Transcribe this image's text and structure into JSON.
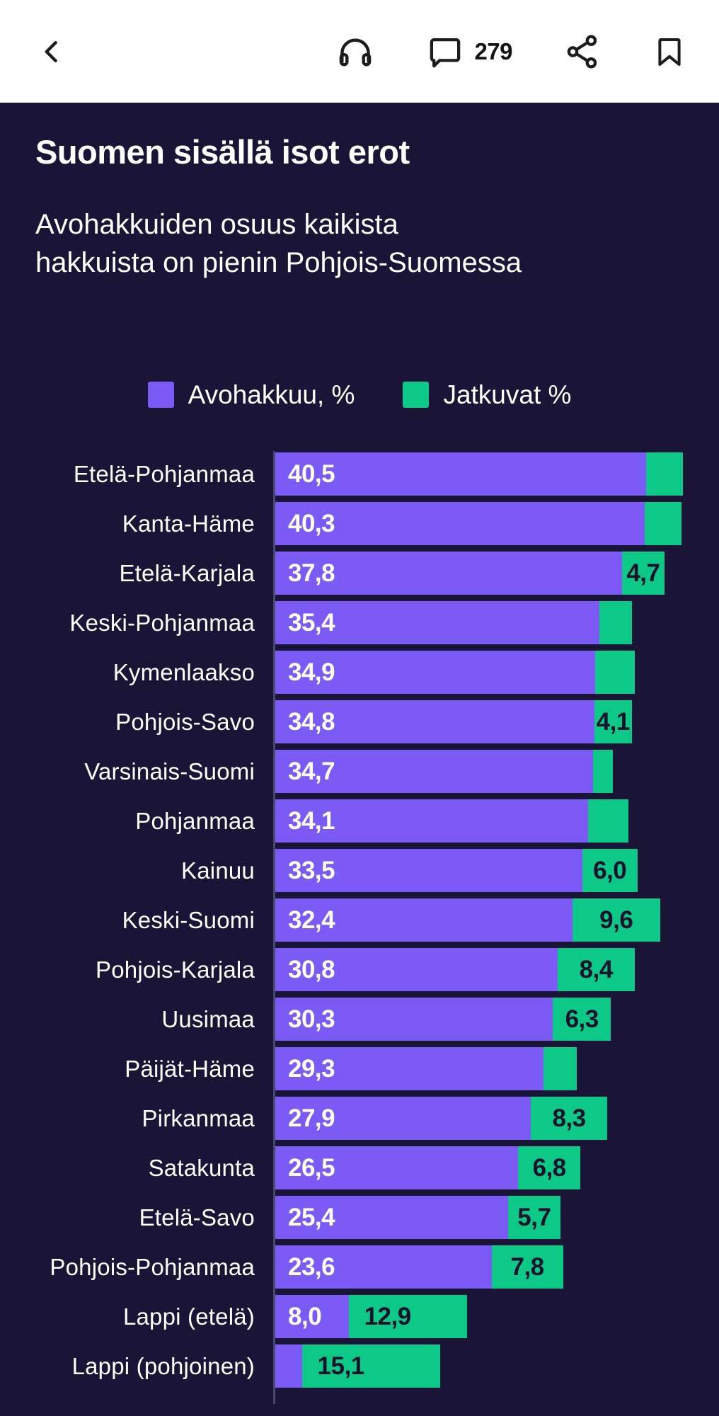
{
  "header": {
    "comments_count": "279",
    "icons": {
      "back": "chevron-left-icon",
      "listen": "headphones-icon",
      "comments": "speech-bubble-icon",
      "share": "share-icon",
      "bookmark": "bookmark-icon"
    }
  },
  "article": {
    "title": "Suomen sisällä isot erot",
    "subtitle_line1": "Avohakkuiden osuus kaikista",
    "subtitle_line2": "hakkuista on pienin Pohjois-Suomessa"
  },
  "legend": [
    {
      "label": "Avohakkuu, %",
      "color": "#7c5af5"
    },
    {
      "label": "Jatkuvat %",
      "color": "#0dc987"
    }
  ],
  "colors": {
    "background": "#1a1536",
    "header_background": "#ffffff",
    "header_icon": "#1c1c1f",
    "text": "#ffffff",
    "avohakkuu": "#7c5af5",
    "jatkuvat": "#0dc987",
    "value_on_green": "#15122b",
    "axis_line": "#4b4670"
  },
  "chart_data": {
    "type": "bar",
    "orientation": "horizontal",
    "stacked": true,
    "unit": "%",
    "xlim": [
      0,
      48.5
    ],
    "grid": false,
    "legend_position": "top-center",
    "categories": [
      "Etelä-Pohjanmaa",
      "Kanta-Häme",
      "Etelä-Karjala",
      "Keski-Pohjanmaa",
      "Kymenlaakso",
      "Pohjois-Savo",
      "Varsinais-Suomi",
      "Pohjanmaa",
      "Kainuu",
      "Keski-Suomi",
      "Pohjois-Karjala",
      "Uusimaa",
      "Päijät-Häme",
      "Pirkanmaa",
      "Satakunta",
      "Etelä-Savo",
      "Pohjois-Pohjanmaa",
      "Lappi (etelä)",
      "Lappi (pohjoinen)"
    ],
    "series": [
      {
        "name": "Avohakkuu, %",
        "color": "#7c5af5",
        "values": [
          40.5,
          40.3,
          37.8,
          35.4,
          34.9,
          34.8,
          34.7,
          34.1,
          33.5,
          32.4,
          30.8,
          30.3,
          29.3,
          27.9,
          26.5,
          25.4,
          23.6,
          8.0,
          2.9
        ],
        "labels": [
          "40,5",
          "40,3",
          "37,8",
          "35,4",
          "34,9",
          "34,8",
          "34,7",
          "34,1",
          "33,5",
          "32,4",
          "30,8",
          "30,3",
          "29,3",
          "27,9",
          "26,5",
          "25,4",
          "23,6",
          "8,0",
          ""
        ]
      },
      {
        "name": "Jatkuvat %",
        "color": "#0dc987",
        "values": [
          4.0,
          4.0,
          4.7,
          3.5,
          4.3,
          4.1,
          2.1,
          4.4,
          6.0,
          9.6,
          8.4,
          6.3,
          3.6,
          8.3,
          6.8,
          5.7,
          7.8,
          12.9,
          15.1
        ],
        "labels": [
          "",
          "",
          "4,7",
          "",
          "",
          "4,1",
          "",
          "",
          "6,0",
          "9,6",
          "8,4",
          "6,3",
          "",
          "8,3",
          "6,8",
          "5,7",
          "7,8",
          "12,9",
          "15,1"
        ]
      }
    ]
  }
}
